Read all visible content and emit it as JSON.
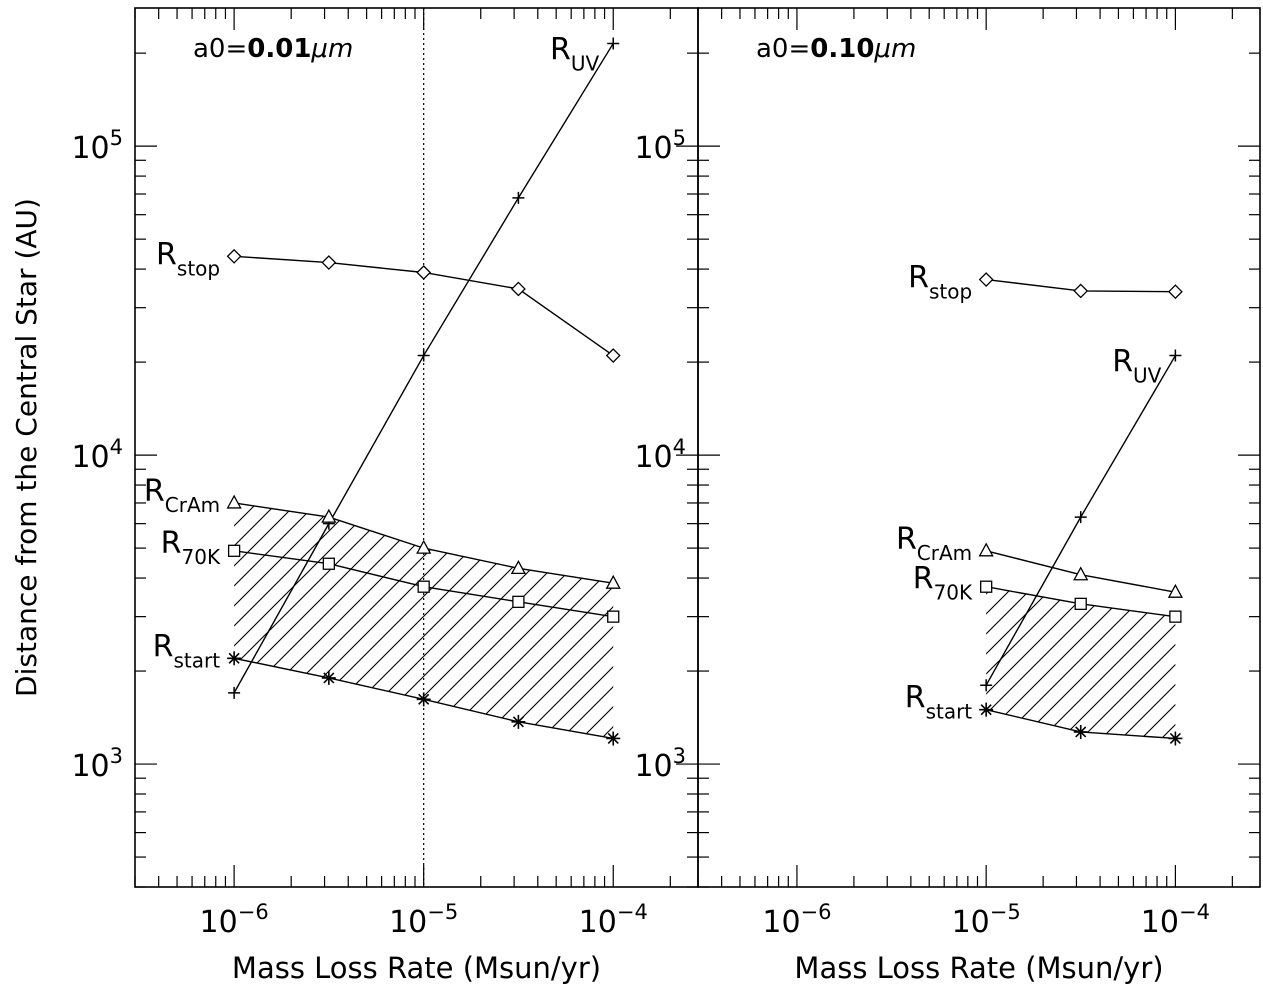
{
  "chart_data": [
    {
      "type": "line",
      "annotation_main": "a0=",
      "annotation_value": "0.01",
      "annotation_unit": "μm",
      "xlabel": "Mass Loss Rate (Msun/yr)",
      "ylabel": "Distance from the Central Star (AU)",
      "x_scale": "log",
      "y_scale": "log",
      "xlim": [
        3e-07,
        0.00028
      ],
      "ylim": [
        400,
        280000
      ],
      "x_ticks": [
        {
          "value": 1e-06,
          "base": "10",
          "exp": "−6"
        },
        {
          "value": 1e-05,
          "base": "10",
          "exp": "−5"
        },
        {
          "value": 0.0001,
          "base": "10",
          "exp": "−4"
        }
      ],
      "y_ticks": [
        {
          "value": 1000,
          "base": "10",
          "exp": "3"
        },
        {
          "value": 10000,
          "base": "10",
          "exp": "4"
        },
        {
          "value": 100000,
          "base": "10",
          "exp": "5"
        }
      ],
      "vline_x": 1e-05,
      "hatch_between": [
        "R_CrAm",
        "R_start"
      ],
      "series": [
        {
          "key": "R_stop",
          "name": "R",
          "sub": "stop",
          "marker": "diamond",
          "x": [
            1e-06,
            3.16e-06,
            1e-05,
            3.16e-05,
            0.0001
          ],
          "y": [
            44000,
            42000,
            39000,
            34500,
            21000
          ],
          "label_x": 1e-06,
          "label_y": 44000
        },
        {
          "key": "R_UV",
          "name": "R",
          "sub": "UV",
          "marker": "plus",
          "x": [
            1e-06,
            3.16e-06,
            1e-05,
            3.16e-05,
            0.0001
          ],
          "y": [
            1700,
            6000,
            21000,
            68000,
            215000
          ],
          "label_x": 0.0001,
          "label_y": 215000
        },
        {
          "key": "R_CrAm",
          "name": "R",
          "sub": "CrAm",
          "marker": "triangle",
          "x": [
            1e-06,
            3.16e-06,
            1e-05,
            3.16e-05,
            0.0001
          ],
          "y": [
            7000,
            6300,
            5000,
            4300,
            3850
          ],
          "label_x": 1e-06,
          "label_y": 7000
        },
        {
          "key": "R_70K",
          "name": "R",
          "sub": "70K",
          "marker": "square",
          "x": [
            1e-06,
            3.16e-06,
            1e-05,
            3.16e-05,
            0.0001
          ],
          "y": [
            4900,
            4450,
            3750,
            3350,
            3000
          ],
          "label_x": 1e-06,
          "label_y": 4900
        },
        {
          "key": "R_start",
          "name": "R",
          "sub": "start",
          "marker": "asterisk",
          "x": [
            1e-06,
            3.16e-06,
            1e-05,
            3.16e-05,
            0.0001
          ],
          "y": [
            2200,
            1900,
            1620,
            1370,
            1210
          ],
          "label_x": 1e-06,
          "label_y": 2200
        }
      ]
    },
    {
      "type": "line",
      "annotation_main": "a0=",
      "annotation_value": "0.10",
      "annotation_unit": "μm",
      "xlabel": "Mass Loss Rate (Msun/yr)",
      "ylabel": "",
      "x_scale": "log",
      "y_scale": "log",
      "xlim": [
        3e-07,
        0.00028
      ],
      "ylim": [
        400,
        280000
      ],
      "x_ticks": [
        {
          "value": 1e-06,
          "base": "10",
          "exp": "−6"
        },
        {
          "value": 1e-05,
          "base": "10",
          "exp": "−5"
        },
        {
          "value": 0.0001,
          "base": "10",
          "exp": "−4"
        }
      ],
      "y_ticks": [
        {
          "value": 1000,
          "base": "10",
          "exp": "3"
        },
        {
          "value": 10000,
          "base": "10",
          "exp": "4"
        },
        {
          "value": 100000,
          "base": "10",
          "exp": "5"
        }
      ],
      "vline_x": null,
      "hatch_between": [
        "R_70K",
        "R_start"
      ],
      "series": [
        {
          "key": "R_stop",
          "name": "R",
          "sub": "stop",
          "marker": "diamond",
          "x": [
            1e-05,
            3.16e-05,
            0.0001
          ],
          "y": [
            37000,
            34000,
            33800
          ],
          "label_x": 1e-05,
          "label_y": 37000
        },
        {
          "key": "R_UV",
          "name": "R",
          "sub": "UV",
          "marker": "plus",
          "x": [
            1e-05,
            3.16e-05,
            0.0001
          ],
          "y": [
            1800,
            6300,
            21000
          ],
          "label_x": 0.0001,
          "label_y": 21000
        },
        {
          "key": "R_CrAm",
          "name": "R",
          "sub": "CrAm",
          "marker": "triangle",
          "x": [
            1e-05,
            3.16e-05,
            0.0001
          ],
          "y": [
            4900,
            4100,
            3600
          ],
          "label_x": 1e-05,
          "label_y": 4900
        },
        {
          "key": "R_70K",
          "name": "R",
          "sub": "70K",
          "marker": "square",
          "x": [
            1e-05,
            3.16e-05,
            0.0001
          ],
          "y": [
            3750,
            3300,
            3000
          ],
          "label_x": 1e-05,
          "label_y": 3750
        },
        {
          "key": "R_start",
          "name": "R",
          "sub": "start",
          "marker": "asterisk",
          "x": [
            1e-05,
            3.16e-05,
            0.0001
          ],
          "y": [
            1500,
            1270,
            1210
          ],
          "label_x": 1e-05,
          "label_y": 1500
        }
      ]
    }
  ]
}
